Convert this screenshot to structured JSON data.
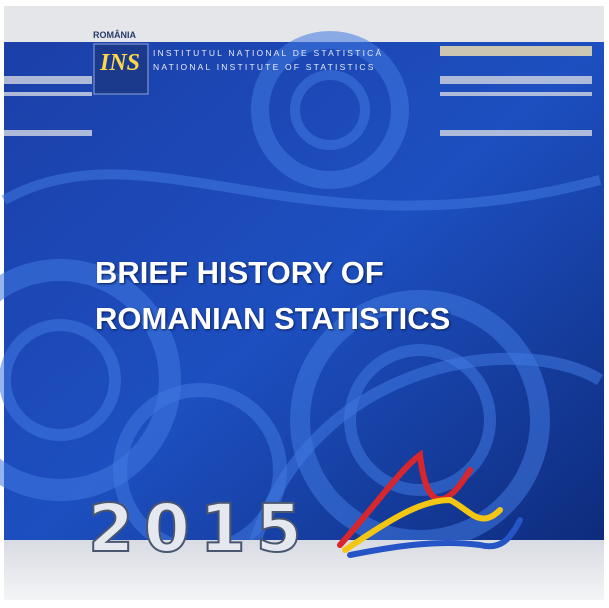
{
  "header": {
    "country": "ROMÂNIA",
    "logo": "INS",
    "institute_ro": "INSTITUTUL NAȚIONAL DE STATISTICĂ",
    "institute_en": "NATIONAL INSTITUTE OF STATISTICS"
  },
  "title": {
    "lines": [
      "BRIEF HISTORY OF",
      "ROMANIAN STATISTICS"
    ]
  },
  "year": "2015"
}
